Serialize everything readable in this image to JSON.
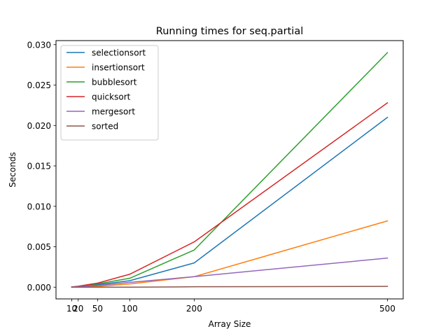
{
  "chart_data": {
    "type": "line",
    "title": "Running times for seq.partial",
    "xlabel": "Array Size",
    "ylabel": "Seconds",
    "x": [
      10,
      20,
      50,
      100,
      200,
      500
    ],
    "xticks": [
      10,
      20,
      50,
      100,
      200,
      500
    ],
    "xtick_labels": [
      "10",
      "20",
      "50",
      "100",
      "200",
      "500"
    ],
    "xlim": [
      -14.5,
      524.5
    ],
    "ylim": [
      -0.00145,
      0.0305
    ],
    "yticks": [
      0.0,
      0.005,
      0.01,
      0.015,
      0.02,
      0.025,
      0.03
    ],
    "ytick_labels": [
      "0.000",
      "0.005",
      "0.010",
      "0.015",
      "0.020",
      "0.025",
      "0.030"
    ],
    "grid": false,
    "legend_position": "upper-left",
    "series": [
      {
        "name": "selectionsort",
        "color": "#1f77b4",
        "values": [
          2e-05,
          6e-05,
          0.0003,
          0.0008,
          0.003,
          0.021
        ]
      },
      {
        "name": "insertionsort",
        "color": "#ff7f0e",
        "values": [
          1e-05,
          3e-05,
          0.0001,
          0.0004,
          0.0013,
          0.0082
        ]
      },
      {
        "name": "bubblesort",
        "color": "#2ca02c",
        "values": [
          2e-05,
          8e-05,
          0.0004,
          0.0011,
          0.0046,
          0.029
        ]
      },
      {
        "name": "quicksort",
        "color": "#d62728",
        "values": [
          3e-05,
          0.00012,
          0.0005,
          0.0016,
          0.0056,
          0.0228
        ]
      },
      {
        "name": "mergesort",
        "color": "#9467bd",
        "values": [
          2e-05,
          6e-05,
          0.0002,
          0.0006,
          0.0013,
          0.0036
        ]
      },
      {
        "name": "sorted",
        "color": "#8c564b",
        "values": [
          0.0,
          0.0,
          0.0,
          0.0,
          5e-05,
          0.0001
        ]
      }
    ]
  }
}
